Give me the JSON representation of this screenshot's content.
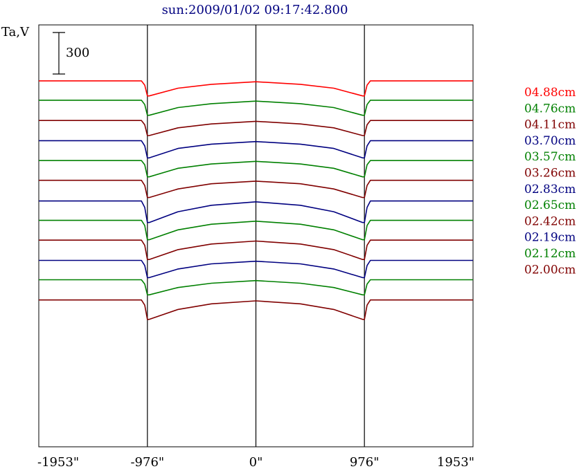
{
  "chart_data": {
    "type": "line",
    "title": "sun:2009/01/02 09:17:42.800",
    "ylabel": "Ta,V",
    "scale_bar_label": "300",
    "xlabel": "",
    "x_ticks": [
      "-1953\"",
      "-976\"",
      "0\"",
      "976\"",
      "1953\""
    ],
    "x_tick_values": [
      -1953,
      -976,
      0,
      976,
      1953
    ],
    "xlim": [
      -1953,
      1953
    ],
    "vertical_markers": [
      -976,
      0,
      976
    ],
    "ylim": [
      -850,
      130
    ],
    "legend_position": "right",
    "grid": false,
    "x": [
      -1953,
      -1800,
      -1300,
      -1030,
      -1000,
      -976,
      -960,
      -700,
      -400,
      0,
      400,
      700,
      960,
      976,
      1000,
      1030,
      1300,
      1800,
      1953
    ],
    "series": [
      {
        "name": "04.88cm",
        "color": "#ff0000",
        "offset": 0,
        "values": [
          0,
          0,
          0,
          0,
          -10,
          -35,
          -35,
          -17,
          -8,
          -2,
          -8,
          -17,
          -35,
          -35,
          -10,
          0,
          0,
          0,
          0
        ]
      },
      {
        "name": "04.76cm",
        "color": "#008000",
        "offset": -45,
        "values": [
          0,
          0,
          0,
          0,
          -10,
          -35,
          -35,
          -17,
          -8,
          -2,
          -8,
          -17,
          -35,
          -35,
          -10,
          0,
          0,
          0,
          0
        ]
      },
      {
        "name": "04.11cm",
        "color": "#800000",
        "offset": -92,
        "values": [
          0,
          0,
          0,
          0,
          -10,
          -35,
          -35,
          -17,
          -8,
          -2,
          -8,
          -17,
          -35,
          -35,
          -10,
          0,
          0,
          0,
          0
        ]
      },
      {
        "name": "03.70cm",
        "color": "#000080",
        "offset": -139,
        "values": [
          0,
          0,
          0,
          0,
          -12,
          -40,
          -40,
          -18,
          -8,
          -2,
          -8,
          -18,
          -40,
          -40,
          -12,
          0,
          0,
          0,
          0
        ]
      },
      {
        "name": "03.57cm",
        "color": "#008000",
        "offset": -185,
        "values": [
          0,
          0,
          0,
          0,
          -10,
          -38,
          -38,
          -18,
          -8,
          -2,
          -8,
          -18,
          -38,
          -38,
          -10,
          0,
          0,
          0,
          0
        ]
      },
      {
        "name": "03.26cm",
        "color": "#800000",
        "offset": -231,
        "values": [
          0,
          0,
          0,
          0,
          -12,
          -40,
          -40,
          -20,
          -8,
          -2,
          -8,
          -20,
          -40,
          -40,
          -12,
          0,
          0,
          0,
          0
        ]
      },
      {
        "name": "02.83cm",
        "color": "#000080",
        "offset": -279,
        "values": [
          0,
          0,
          0,
          0,
          -15,
          -50,
          -50,
          -25,
          -10,
          -2,
          -10,
          -25,
          -50,
          -50,
          -15,
          0,
          0,
          0,
          0
        ]
      },
      {
        "name": "02.65cm",
        "color": "#008000",
        "offset": -324,
        "values": [
          0,
          0,
          0,
          0,
          -12,
          -45,
          -45,
          -22,
          -9,
          -2,
          -9,
          -22,
          -45,
          -45,
          -12,
          0,
          0,
          0,
          0
        ]
      },
      {
        "name": "02.42cm",
        "color": "#800000",
        "offset": -370,
        "values": [
          0,
          0,
          0,
          0,
          -12,
          -45,
          -45,
          -22,
          -9,
          -2,
          -9,
          -22,
          -45,
          -45,
          -12,
          0,
          0,
          0,
          0
        ]
      },
      {
        "name": "02.19cm",
        "color": "#000080",
        "offset": -417,
        "values": [
          0,
          0,
          0,
          0,
          -12,
          -40,
          -40,
          -20,
          -8,
          -2,
          -8,
          -20,
          -40,
          -40,
          -12,
          0,
          0,
          0,
          0
        ]
      },
      {
        "name": "02.12cm",
        "color": "#008000",
        "offset": -462,
        "values": [
          0,
          0,
          0,
          0,
          -10,
          -35,
          -35,
          -18,
          -8,
          -2,
          -8,
          -18,
          -35,
          -35,
          -10,
          0,
          0,
          0,
          0
        ]
      },
      {
        "name": "02.00cm",
        "color": "#800000",
        "offset": -509,
        "values": [
          0,
          0,
          0,
          0,
          -12,
          -45,
          -45,
          -22,
          -9,
          -2,
          -9,
          -22,
          -45,
          -45,
          -12,
          0,
          0,
          0,
          0
        ]
      }
    ]
  }
}
